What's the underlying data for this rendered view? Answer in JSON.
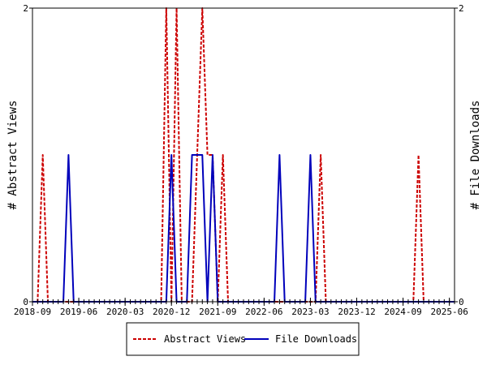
{
  "chart_data": {
    "type": "line",
    "x_ticks": [
      "2018-09",
      "2019-06",
      "2020-03",
      "2020-12",
      "2021-09",
      "2022-06",
      "2023-03",
      "2023-12",
      "2024-09",
      "2025-06"
    ],
    "xlim": [
      "2018-09",
      "2025-07"
    ],
    "ylabel_left": "# Abstract Views",
    "ylabel_right": "# File Downloads",
    "ylim_left": [
      0,
      2
    ],
    "ylim_right": [
      0,
      2
    ],
    "y_ticks_left": [
      "0",
      "2"
    ],
    "y_ticks_right": [
      "0",
      "2"
    ],
    "grid": false,
    "legend_position": "bottom",
    "series": [
      {
        "name": "Abstract Views",
        "color": "#cc0000",
        "style": "dashed",
        "axis": "left",
        "points": [
          [
            "2018-09",
            0
          ],
          [
            "2018-10",
            0
          ],
          [
            "2018-11",
            1
          ],
          [
            "2018-12",
            0
          ],
          [
            "2020-10",
            0
          ],
          [
            "2020-11",
            2
          ],
          [
            "2020-12",
            0
          ],
          [
            "2021-01",
            2
          ],
          [
            "2021-02",
            0
          ],
          [
            "2021-04",
            0
          ],
          [
            "2021-05",
            1
          ],
          [
            "2021-06",
            2
          ],
          [
            "2021-07",
            1
          ],
          [
            "2021-08",
            1
          ],
          [
            "2021-09",
            0
          ],
          [
            "2021-10",
            1
          ],
          [
            "2021-11",
            0
          ],
          [
            "2023-04",
            0
          ],
          [
            "2023-05",
            1
          ],
          [
            "2023-06",
            0
          ],
          [
            "2024-11",
            0
          ],
          [
            "2024-12",
            1
          ],
          [
            "2025-01",
            0
          ],
          [
            "2025-07",
            0
          ]
        ]
      },
      {
        "name": "File Downloads",
        "color": "#0000bb",
        "style": "solid",
        "axis": "right",
        "points": [
          [
            "2018-09",
            0
          ],
          [
            "2019-03",
            0
          ],
          [
            "2019-04",
            1
          ],
          [
            "2019-05",
            0
          ],
          [
            "2020-11",
            0
          ],
          [
            "2020-12",
            1
          ],
          [
            "2021-01",
            0
          ],
          [
            "2021-03",
            0
          ],
          [
            "2021-04",
            1
          ],
          [
            "2021-05",
            1
          ],
          [
            "2021-06",
            1
          ],
          [
            "2021-07",
            0
          ],
          [
            "2021-08",
            1
          ],
          [
            "2021-09",
            0
          ],
          [
            "2022-08",
            0
          ],
          [
            "2022-09",
            1
          ],
          [
            "2022-10",
            0
          ],
          [
            "2023-02",
            0
          ],
          [
            "2023-03",
            1
          ],
          [
            "2023-04",
            0
          ],
          [
            "2025-07",
            0
          ]
        ]
      }
    ]
  }
}
